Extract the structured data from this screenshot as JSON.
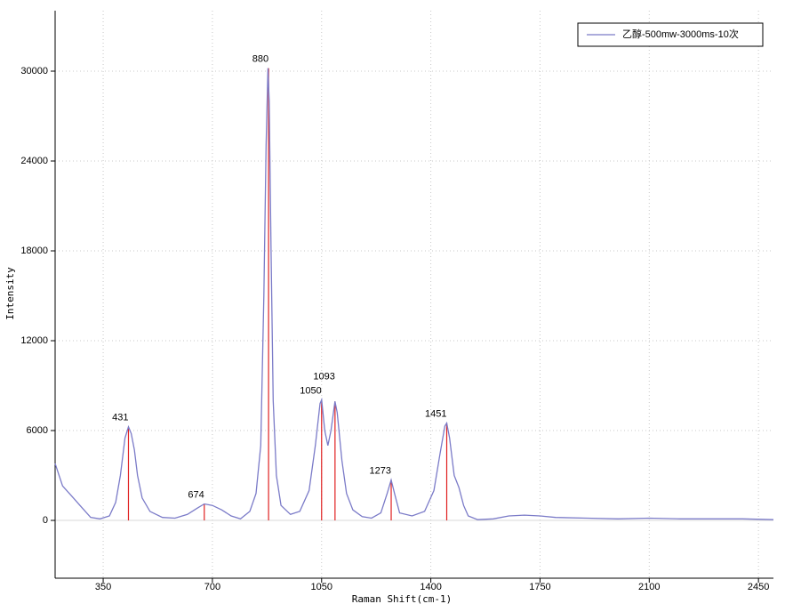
{
  "chart_data": {
    "type": "line",
    "x_label": "Raman Shift(cm-1)",
    "y_label": "Intensity",
    "x": [
      196,
      220,
      250,
      280,
      310,
      340,
      370,
      390,
      405,
      420,
      431,
      440,
      450,
      460,
      475,
      500,
      540,
      580,
      620,
      650,
      674,
      700,
      730,
      760,
      790,
      820,
      840,
      855,
      865,
      872,
      878,
      882,
      888,
      895,
      905,
      920,
      950,
      980,
      1010,
      1030,
      1045,
      1050,
      1060,
      1070,
      1080,
      1093,
      1100,
      1115,
      1130,
      1150,
      1180,
      1210,
      1240,
      1260,
      1273,
      1285,
      1300,
      1340,
      1380,
      1410,
      1430,
      1445,
      1451,
      1460,
      1475,
      1490,
      1505,
      1520,
      1550,
      1600,
      1650,
      1700,
      1750,
      1800,
      1900,
      2000,
      2100,
      2200,
      2300,
      2400,
      2498
    ],
    "series": [
      {
        "name": "乙醇-500mw-3000ms-10次",
        "color": "#7b7bc8",
        "values": [
          3800,
          2300,
          1600,
          900,
          200,
          100,
          300,
          1200,
          3000,
          5500,
          6250,
          5800,
          4700,
          3000,
          1500,
          600,
          200,
          150,
          400,
          800,
          1100,
          1000,
          700,
          300,
          100,
          600,
          1800,
          5000,
          15000,
          25000,
          30200,
          28000,
          18000,
          8000,
          3000,
          1000,
          400,
          600,
          2000,
          5000,
          7800,
          8050,
          6000,
          5000,
          6000,
          7950,
          7200,
          4000,
          1800,
          700,
          250,
          150,
          500,
          1800,
          2700,
          1700,
          500,
          300,
          600,
          2000,
          4500,
          6300,
          6500,
          5500,
          3000,
          2200,
          1000,
          300,
          50,
          100,
          300,
          350,
          300,
          200,
          150,
          100,
          150,
          100,
          100,
          100,
          50
        ]
      }
    ],
    "peaks": {
      "color": "#e02020",
      "x": [
        431,
        674,
        880,
        1050,
        1093,
        1273,
        1451
      ],
      "values": [
        6250,
        1100,
        30200,
        8050,
        7950,
        2700,
        6500
      ]
    },
    "xlim": [
      196,
      2498
    ],
    "xticks": [
      350,
      700,
      1050,
      1400,
      1750,
      2100,
      2450
    ],
    "ylim": [
      -3860,
      34040
    ],
    "yticks": [
      0,
      6000,
      12000,
      18000,
      24000,
      30000
    ],
    "grid": true,
    "legend": "top-right"
  }
}
